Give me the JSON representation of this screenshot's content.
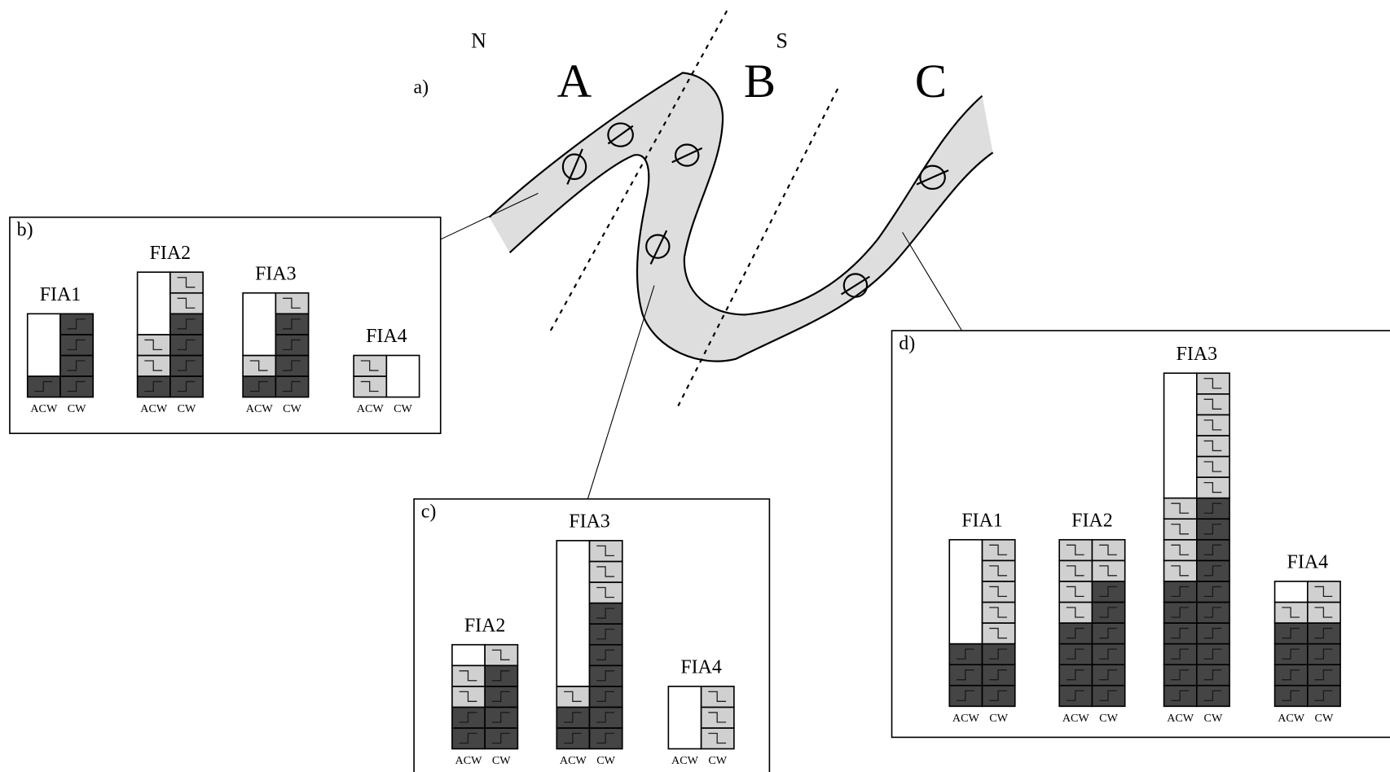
{
  "map": {
    "label": "a)",
    "north": "N",
    "south": "S",
    "zones": [
      "A",
      "B",
      "C"
    ]
  },
  "panels": [
    {
      "label": "b)",
      "groups": [
        {
          "name": "FIA1",
          "acw": {
            "label": "ACW",
            "dark": 1,
            "light": 0,
            "empty": 3
          },
          "cw": {
            "label": "CW",
            "dark": 4,
            "light": 0,
            "empty": 0
          }
        },
        {
          "name": "FIA2",
          "acw": {
            "label": "ACW",
            "dark": 1,
            "light": 2,
            "empty": 3
          },
          "cw": {
            "label": "CW",
            "dark": 4,
            "light": 2,
            "empty": 0
          }
        },
        {
          "name": "FIA3",
          "acw": {
            "label": "ACW",
            "dark": 1,
            "light": 1,
            "empty": 3
          },
          "cw": {
            "label": "CW",
            "dark": 4,
            "light": 1,
            "empty": 0
          }
        },
        {
          "name": "FIA4",
          "acw": {
            "label": "ACW",
            "dark": 0,
            "light": 2,
            "empty": 0
          },
          "cw": {
            "label": "CW",
            "dark": 0,
            "light": 0,
            "empty": 2
          }
        }
      ]
    },
    {
      "label": "c)",
      "groups": [
        {
          "name": "FIA2",
          "acw": {
            "label": "ACW",
            "dark": 2,
            "light": 2,
            "empty": 1
          },
          "cw": {
            "label": "CW",
            "dark": 4,
            "light": 1,
            "empty": 0
          }
        },
        {
          "name": "FIA3",
          "acw": {
            "label": "ACW",
            "dark": 2,
            "light": 1,
            "empty": 7
          },
          "cw": {
            "label": "CW",
            "dark": 7,
            "light": 3,
            "empty": 0
          }
        },
        {
          "name": "FIA4",
          "acw": {
            "label": "ACW",
            "dark": 0,
            "light": 0,
            "empty": 3
          },
          "cw": {
            "label": "CW",
            "dark": 0,
            "light": 3,
            "empty": 0
          }
        }
      ]
    },
    {
      "label": "d)",
      "groups": [
        {
          "name": "FIA1",
          "acw": {
            "label": "ACW",
            "dark": 3,
            "light": 0,
            "empty": 5
          },
          "cw": {
            "label": "CW",
            "dark": 3,
            "light": 5,
            "empty": 0
          }
        },
        {
          "name": "FIA2",
          "acw": {
            "label": "ACW",
            "dark": 4,
            "light": 4,
            "empty": 0
          },
          "cw": {
            "label": "CW",
            "dark": 6,
            "light": 2,
            "empty": 0
          }
        },
        {
          "name": "FIA3",
          "acw": {
            "label": "ACW",
            "dark": 6,
            "light": 4,
            "empty": 6
          },
          "cw": {
            "label": "CW",
            "dark": 10,
            "light": 6,
            "empty": 0
          }
        },
        {
          "name": "FIA4",
          "acw": {
            "label": "ACW",
            "dark": 4,
            "light": 1,
            "empty": 1
          },
          "cw": {
            "label": "CW",
            "dark": 4,
            "light": 2,
            "empty": 0
          }
        }
      ]
    }
  ]
}
